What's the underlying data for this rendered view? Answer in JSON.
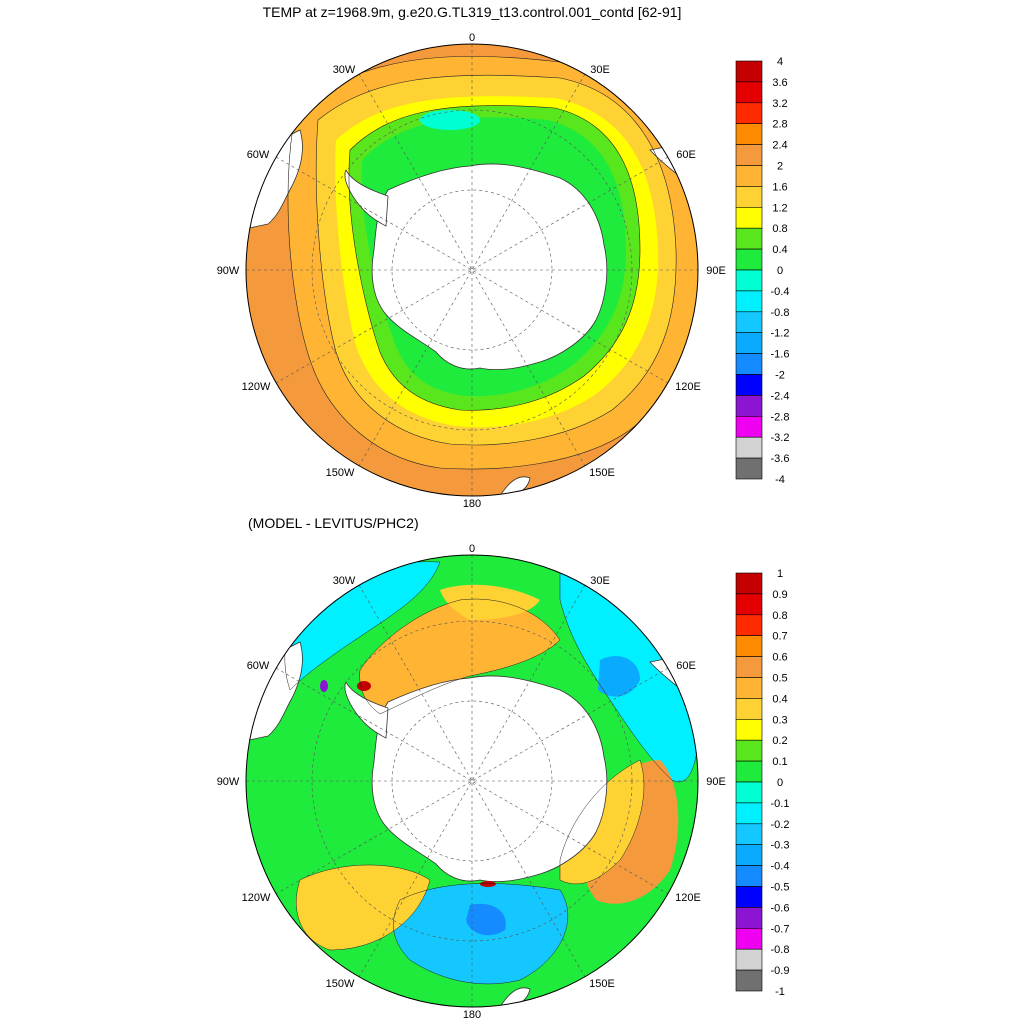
{
  "panels": [
    {
      "title": "TEMP at z=1968.9m, g.e20.G.TL319_t13.control.001_contd [62-91]",
      "lon_labels": {
        "north": "0",
        "nw": "30W",
        "ne": "30E",
        "wnw": "60W",
        "ene": "60E",
        "west": "90W",
        "east": "90E",
        "wsw": "120W",
        "ese": "120E",
        "ssw": "150W",
        "sse": "150E",
        "south": "180"
      },
      "colorbar": {
        "labels": [
          "4",
          "3.6",
          "3.2",
          "2.8",
          "2.4",
          "2",
          "1.6",
          "1.2",
          "0.8",
          "0.4",
          "0",
          "-0.4",
          "-0.8",
          "-1.2",
          "-1.6",
          "-2",
          "-2.4",
          "-2.8",
          "-3.2",
          "-3.6",
          "-4"
        ],
        "colors": [
          "#c40000",
          "#e40000",
          "#ff2a00",
          "#ff8c00",
          "#f49a3c",
          "#ffb433",
          "#ffd233",
          "#ffff00",
          "#5ae61c",
          "#1eeb3c",
          "#00ffd2",
          "#00f0ff",
          "#14c8ff",
          "#0aaaff",
          "#148cff",
          "#0000ff",
          "#8c14d2",
          "#f000f0",
          "#d2d2d2",
          "#707070"
        ]
      }
    },
    {
      "title": "(MODEL - LEVITUS/PHC2)",
      "lon_labels": {
        "north": "0",
        "nw": "30W",
        "ne": "30E",
        "wnw": "60W",
        "ene": "60E",
        "west": "90W",
        "east": "90E",
        "wsw": "120W",
        "ese": "120E",
        "ssw": "150W",
        "sse": "150E",
        "south": "180"
      },
      "colorbar": {
        "labels": [
          "1",
          "0.9",
          "0.8",
          "0.7",
          "0.6",
          "0.5",
          "0.4",
          "0.3",
          "0.2",
          "0.1",
          "0",
          "-0.1",
          "-0.2",
          "-0.3",
          "-0.4",
          "-0.5",
          "-0.6",
          "-0.7",
          "-0.8",
          "-0.9",
          "-1"
        ],
        "colors": [
          "#c40000",
          "#e40000",
          "#ff2a00",
          "#ff8c00",
          "#f49a3c",
          "#ffb433",
          "#ffd233",
          "#ffff00",
          "#5ae61c",
          "#1eeb3c",
          "#00ffd2",
          "#00f0ff",
          "#14c8ff",
          "#0aaaff",
          "#148cff",
          "#0000ff",
          "#8c14d2",
          "#f000f0",
          "#d2d2d2",
          "#707070"
        ]
      }
    }
  ]
}
